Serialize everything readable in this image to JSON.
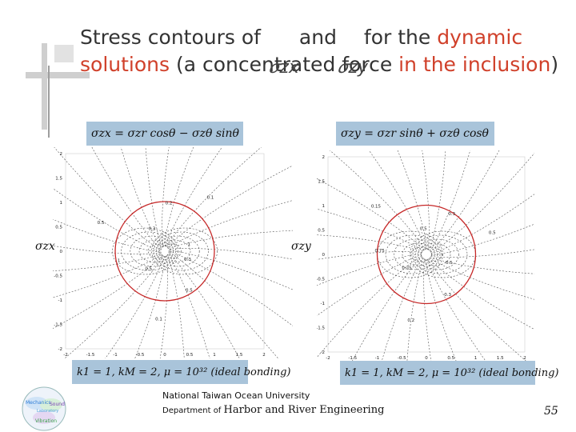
{
  "slide": {
    "title_parts": [
      {
        "text": "Stress contours of ",
        "style": "normal"
      },
      {
        "text": "and",
        "style": "normal"
      },
      {
        "text": " for the ",
        "style": "normal"
      },
      {
        "text": "dynamic",
        "style": "hl"
      },
      {
        "text": " solutions",
        "style": "hl"
      },
      {
        "text": " (a concentrated force ",
        "style": "normal"
      },
      {
        "text": "in the inclusion",
        "style": "hl"
      },
      {
        "text": ")",
        "style": "normal"
      }
    ],
    "title_overlap_glyph_1": "𝜎zx",
    "title_overlap_glyph_2": "𝜎zy",
    "page_number": "55"
  },
  "left_panel": {
    "equation": "σzx = σzr cosθ − σzθ sinθ",
    "y_label": "σzx",
    "params": "k1 = 1, kM = 2, μ = 10³² (ideal bonding)",
    "y_ticks": [
      "2",
      "1.5",
      "1",
      "0.5",
      "0",
      "-0.5",
      "-1",
      "-1.5",
      "-2"
    ],
    "x_ticks": [
      "-2",
      "-1.5",
      "-1",
      "-0.5",
      "0",
      "0.5",
      "1",
      "1.5",
      "2"
    ],
    "contour_labels": [
      "0.3",
      "0.5",
      "0.1",
      "0.5",
      "1",
      "0.5",
      "0.3",
      "0.2",
      "0.1",
      "1"
    ]
  },
  "right_panel": {
    "equation": "σzy = σzr sinθ + σzθ cosθ",
    "y_label": "σzy",
    "params": "k1 = 1, kM = 2, μ = 10³² (ideal bonding)",
    "y_ticks": [
      "2",
      "1.5",
      "1",
      "0.5",
      "0",
      "-0.5",
      "-1",
      "-1.5",
      "-2"
    ],
    "x_ticks": [
      "-2",
      "-1.5",
      "-1",
      "-0.5",
      "0",
      "0.5",
      "1",
      "1.5",
      "2"
    ],
    "contour_labels": [
      "0.5",
      "0.3",
      "0.2",
      "0.25",
      "0.75",
      "0.15",
      "0.5",
      "0.3",
      "0.5"
    ]
  },
  "footer": {
    "university": "National Taiwan Ocean University",
    "dept_prefix": "Department of ",
    "dept_name": "Harbor and River Engineering"
  },
  "logo": {
    "words": [
      "Mechanics",
      "Vibration",
      "Sound",
      "Laboratory"
    ],
    "colors": [
      "#2b7bd6",
      "#3aa64a",
      "#7b3fb5",
      "#4a9fd8"
    ]
  }
}
